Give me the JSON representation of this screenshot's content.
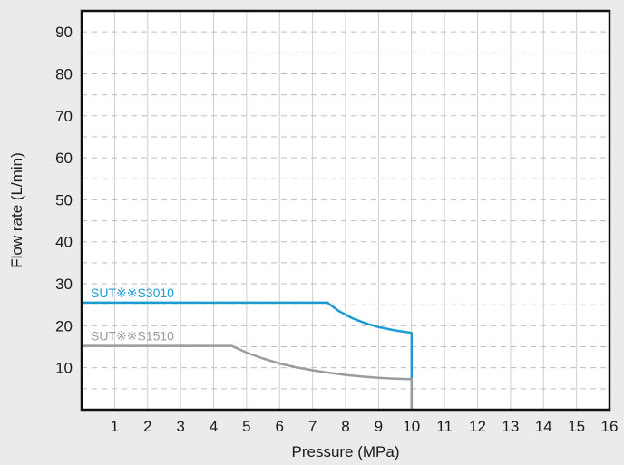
{
  "chart_data": {
    "type": "line",
    "xlabel": "Pressure (MPa)",
    "ylabel": "Flow rate (L/min)",
    "xlim": [
      0,
      16
    ],
    "ylim": [
      0,
      95
    ],
    "x_ticks": [
      "1",
      "2",
      "3",
      "4",
      "5",
      "6",
      "7",
      "8",
      "9",
      "10",
      "11",
      "12",
      "13",
      "14",
      "15",
      "16"
    ],
    "y_ticks": [
      "10",
      "20",
      "30",
      "40",
      "50",
      "60",
      "70",
      "80",
      "90"
    ],
    "grid": "vertical solid, horizontal dashed",
    "legend": "inline labels",
    "series": [
      {
        "name": "SUT※※S3010",
        "color": "#1a9bd1",
        "points": [
          [
            0,
            25.5
          ],
          [
            7.45,
            25.5
          ],
          [
            7.8,
            23.5
          ],
          [
            8.2,
            21.8
          ],
          [
            8.6,
            20.6
          ],
          [
            9.0,
            19.7
          ],
          [
            9.5,
            18.9
          ],
          [
            10,
            18.3
          ],
          [
            10,
            0
          ]
        ]
      },
      {
        "name": "SUT※※S1510",
        "color": "#9b9b9b",
        "points": [
          [
            0,
            15.2
          ],
          [
            4.55,
            15.2
          ],
          [
            5.0,
            13.6
          ],
          [
            5.5,
            12.2
          ],
          [
            6.0,
            11.0
          ],
          [
            6.5,
            10.1
          ],
          [
            7.0,
            9.4
          ],
          [
            7.5,
            8.8
          ],
          [
            8.0,
            8.3
          ],
          [
            8.5,
            7.9
          ],
          [
            9.0,
            7.6
          ],
          [
            9.5,
            7.4
          ],
          [
            10,
            7.3
          ],
          [
            10,
            0
          ]
        ]
      }
    ]
  }
}
